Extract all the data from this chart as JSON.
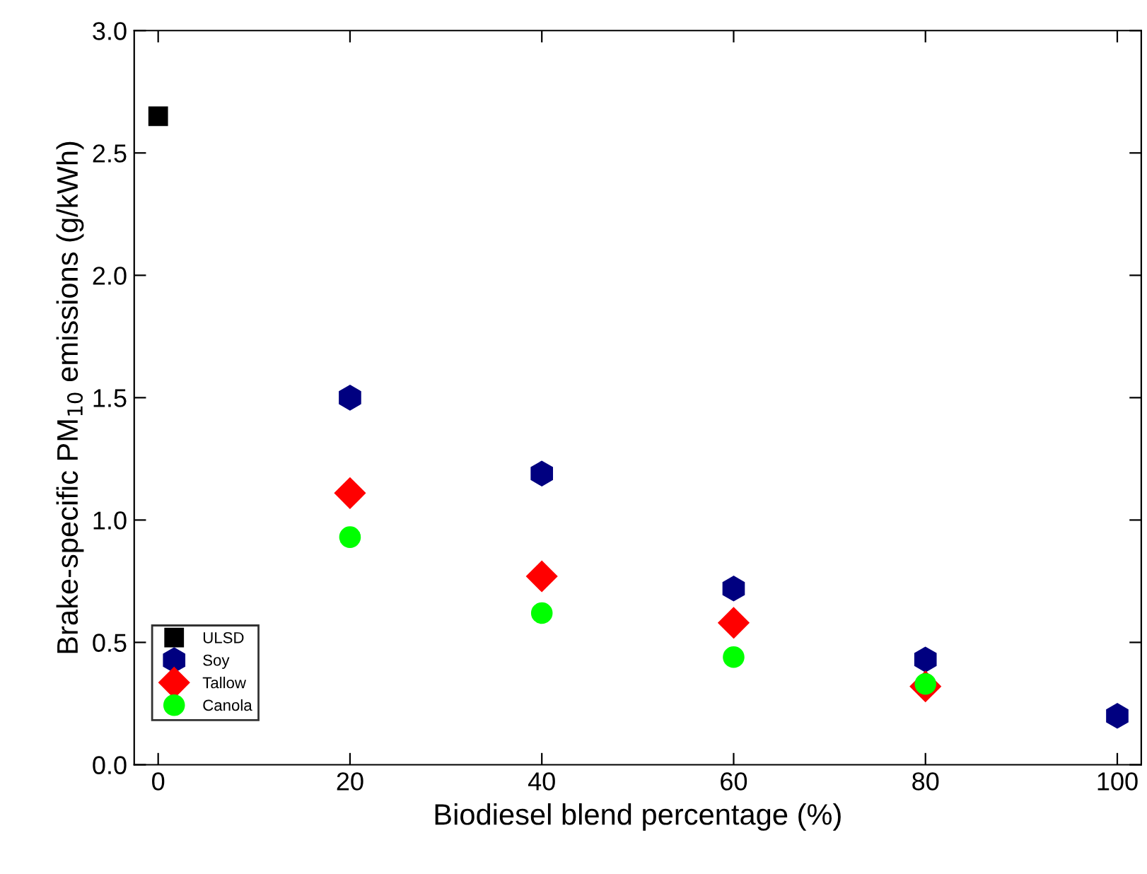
{
  "chart_data": {
    "type": "scatter",
    "xlabel": "Biodiesel blend percentage (%)",
    "ylabel": "Brake-specific PM$_{10}$ emissions (g/kWh)",
    "xlim": [
      -2.5,
      102.5
    ],
    "xticks": [
      0,
      20,
      40,
      60,
      80,
      100
    ],
    "ylim": [
      0,
      3.0
    ],
    "yticks": [
      {
        "value": 0,
        "label": "0.0"
      },
      0.5,
      {
        "value": 1,
        "label": "1.0"
      },
      1.5,
      {
        "value": 2,
        "label": "2.0"
      },
      2.5,
      {
        "value": 3,
        "label": "3.0"
      }
    ],
    "grid": false,
    "legend": "bottom left",
    "series": [
      {
        "name": "ULSD",
        "color": "#000000",
        "marker": "square",
        "x": [
          0
        ],
        "values": [
          2.65
        ]
      },
      {
        "name": "Soy",
        "color": "#000080",
        "x": [
          20,
          40,
          60,
          80,
          100
        ],
        "values": [
          1.5,
          1.19,
          0.72,
          0.43,
          0.2
        ]
      },
      {
        "name": "Tallow",
        "color": "#ff0000",
        "marker": "diamond",
        "x": [
          20,
          40,
          60,
          80
        ],
        "values": [
          1.11,
          0.77,
          0.58,
          0.32
        ]
      },
      {
        "name": "Canola",
        "color": "#00ff00",
        "marker": "circle",
        "x": [
          20,
          40,
          60,
          80
        ],
        "values": [
          0.93,
          0.62,
          0.44,
          0.33
        ]
      }
    ]
  }
}
